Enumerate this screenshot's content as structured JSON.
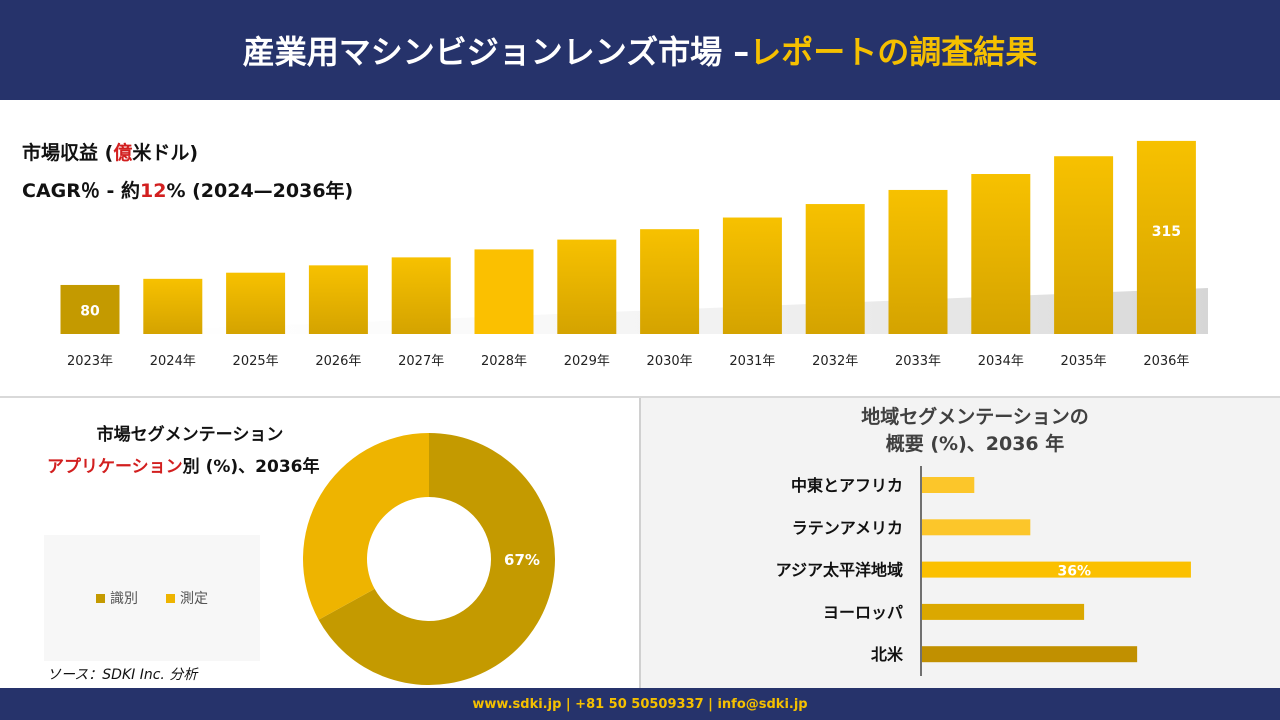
{
  "header": {
    "title_main": "産業用マシンビジョンレンズ市場 –",
    "title_accent": "レポートの調査結果"
  },
  "revenue": {
    "label_prefix": "市場収益 (",
    "label_unit_red": "億",
    "label_suffix": "米ドル)",
    "cagr_prefix": "CAGR％ - 約",
    "cagr_value": "12",
    "cagr_suffix": "% (2024—2036年)"
  },
  "segmentation": {
    "title": "市場セグメンテーション",
    "subtitle_red": "アプリケーション",
    "subtitle_rest": "別 (%)、2036年",
    "source": "ソース：SDKI Inc. 分析"
  },
  "regional": {
    "title_line1": "地域セグメンテーションの",
    "title_line2": "概要 (%)、2036 年"
  },
  "footer": {
    "contact": "www.sdki.jp | +81 50 50509337 | info@sdki.jp"
  },
  "colors": {
    "navy": "#26336b",
    "gold": "#f5c000",
    "dark_gold": "#c49a00",
    "red": "#d21f1f"
  },
  "chart_data": [
    {
      "type": "bar",
      "categories": [
        "2023年",
        "2024年",
        "2025年",
        "2026年",
        "2027年",
        "2028年",
        "2029年",
        "2030年",
        "2031年",
        "2032年",
        "2033年",
        "2034年",
        "2035年",
        "2036年"
      ],
      "values": [
        80,
        90,
        100,
        112,
        125,
        138,
        154,
        171,
        190,
        212,
        235,
        261,
        290,
        315
      ],
      "data_labels": {
        "0": "80",
        "13": "315"
      },
      "ylabel": "市場収益 (億米ドル)",
      "grid": false
    },
    {
      "type": "pie",
      "donut": true,
      "categories": [
        "識別",
        "測定"
      ],
      "values": [
        67,
        33
      ],
      "data_labels": {
        "0": "67%"
      },
      "colors": [
        "#c49a00",
        "#eeb400"
      ],
      "legend": "left"
    },
    {
      "type": "bar",
      "orientation": "horizontal",
      "categories": [
        "中東とアフリカ",
        "ラテンアメリカ",
        "アジア太平洋地域",
        "ヨーロッパ",
        "北米"
      ],
      "values": [
        7,
        14.5,
        36,
        21.7,
        28.8
      ],
      "data_labels": {
        "2": "36%"
      },
      "colors": [
        "#fcc62a",
        "#fcc62a",
        "#fbc000",
        "#dba800",
        "#c19000"
      ]
    }
  ]
}
